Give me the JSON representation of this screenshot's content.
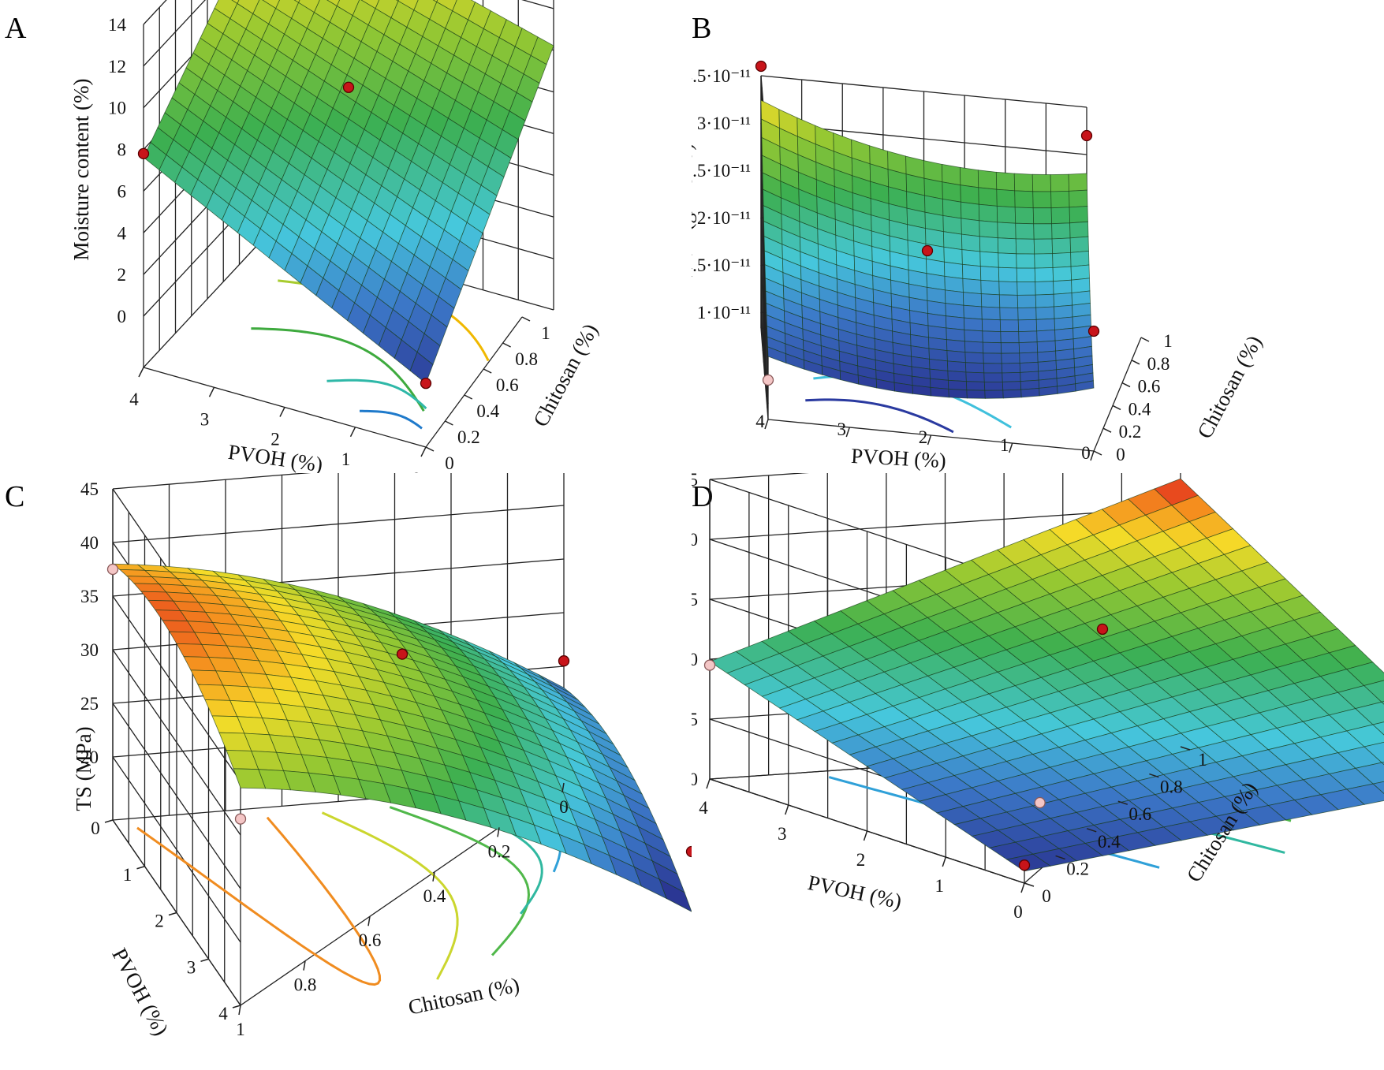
{
  "figure": {
    "panel_letters": [
      "A",
      "B",
      "C",
      "D"
    ]
  },
  "chart_data": [
    {
      "panel": "A",
      "type": "surface3d",
      "zlabel": "Moisture content (%)",
      "xlabel": "PVOH (%)",
      "ylabel": "Chitosan (%)",
      "z_ticks": [
        "0",
        "2",
        "4",
        "6",
        "8",
        "10",
        "12",
        "14"
      ],
      "x_ticks": [
        "4",
        "3",
        "2",
        "1",
        "0"
      ],
      "y_ticks": [
        "0",
        "0.2",
        "0.4",
        "0.6",
        "0.8",
        "1"
      ],
      "xlim": [
        0,
        4
      ],
      "ylim": [
        0,
        1
      ],
      "zlim": [
        0,
        14
      ],
      "design_points": [
        {
          "pvoh": 4,
          "chitosan": 0,
          "value": 7.8
        },
        {
          "pvoh": 4,
          "chitosan": 1,
          "value": 10.5
        },
        {
          "pvoh": 0,
          "chitosan": 1,
          "value": 14.2
        },
        {
          "pvoh": 2,
          "chitosan": 0.5,
          "value": 9.6
        },
        {
          "pvoh": 0,
          "chitosan": 0,
          "value": 0.6
        }
      ]
    },
    {
      "panel": "B",
      "type": "surface3d",
      "zlabel": "WVP (g/m s Pa)",
      "xlabel": "PVOH (%)",
      "ylabel": "Chitosan (%)",
      "z_ticks": [
        "1·10⁻¹¹",
        "1.5·10⁻¹¹",
        "2·10⁻¹¹",
        "2.5·10⁻¹¹",
        "3·10⁻¹¹",
        "3.5·10⁻¹¹"
      ],
      "x_ticks": [
        "4",
        "3",
        "2",
        "1",
        "0"
      ],
      "y_ticks": [
        "0",
        "0.2",
        "0.4",
        "0.6",
        "0.8",
        "1"
      ],
      "xlim": [
        0,
        4
      ],
      "ylim": [
        0,
        1
      ],
      "zlim": [
        1e-11,
        3.5e-11
      ],
      "design_points": [
        {
          "pvoh": 4,
          "chitosan": 1,
          "value": 3.6e-11
        },
        {
          "pvoh": 0,
          "chitosan": 1,
          "value": 3.2e-11
        },
        {
          "pvoh": 2,
          "chitosan": 0.5,
          "value": 2.3e-11
        },
        {
          "pvoh": 0,
          "chitosan": 0,
          "value": 2.1e-11
        },
        {
          "pvoh": 4,
          "chitosan": 0,
          "value": 1.25e-11
        }
      ]
    },
    {
      "panel": "C",
      "type": "surface3d",
      "zlabel": "TS (MPa)",
      "xlabel": "PVOH (%)",
      "ylabel": "Chitosan (%)",
      "z_ticks": [
        "20",
        "25",
        "30",
        "35",
        "40",
        "45"
      ],
      "x_ticks": [
        "0",
        "1",
        "2",
        "3",
        "4"
      ],
      "y_ticks": [
        "1",
        "0.8",
        "0.6",
        "0.4",
        "0.2",
        "0"
      ],
      "xlim": [
        0,
        4
      ],
      "ylim": [
        0,
        1
      ],
      "zlim": [
        20,
        45
      ],
      "design_points": [
        {
          "pvoh": 0,
          "chitosan": 1,
          "value": 37.5
        },
        {
          "pvoh": 4,
          "chitosan": 1,
          "value": 31.5
        },
        {
          "pvoh": 2,
          "chitosan": 0.5,
          "value": 36.5
        },
        {
          "pvoh": 4,
          "chitosan": 0,
          "value": 25.0
        },
        {
          "pvoh": 0,
          "chitosan": 0,
          "value": 25.5
        }
      ]
    },
    {
      "panel": "D",
      "type": "surface3d",
      "zlabel": "%E (%)",
      "xlabel": "PVOH (%)",
      "ylabel": "Chitosan (%)",
      "z_ticks": [
        "0",
        "5",
        "10",
        "15",
        "20",
        "25"
      ],
      "x_ticks": [
        "4",
        "3",
        "2",
        "1",
        "0"
      ],
      "y_ticks": [
        "0",
        "0.2",
        "0.4",
        "0.6",
        "0.8",
        "1"
      ],
      "xlim": [
        0,
        4
      ],
      "ylim": [
        0,
        1
      ],
      "zlim": [
        0,
        25
      ],
      "design_points": [
        {
          "pvoh": 4,
          "chitosan": 1,
          "value": 24.0
        },
        {
          "pvoh": 2,
          "chitosan": 0.5,
          "value": 15.5
        },
        {
          "pvoh": 4,
          "chitosan": 0,
          "value": 9.5
        },
        {
          "pvoh": 0,
          "chitosan": 1,
          "value": 7.0
        },
        {
          "pvoh": 1,
          "chitosan": 0.2,
          "value": 4.0
        },
        {
          "pvoh": 0,
          "chitosan": 0,
          "value": 1.5
        }
      ]
    }
  ]
}
